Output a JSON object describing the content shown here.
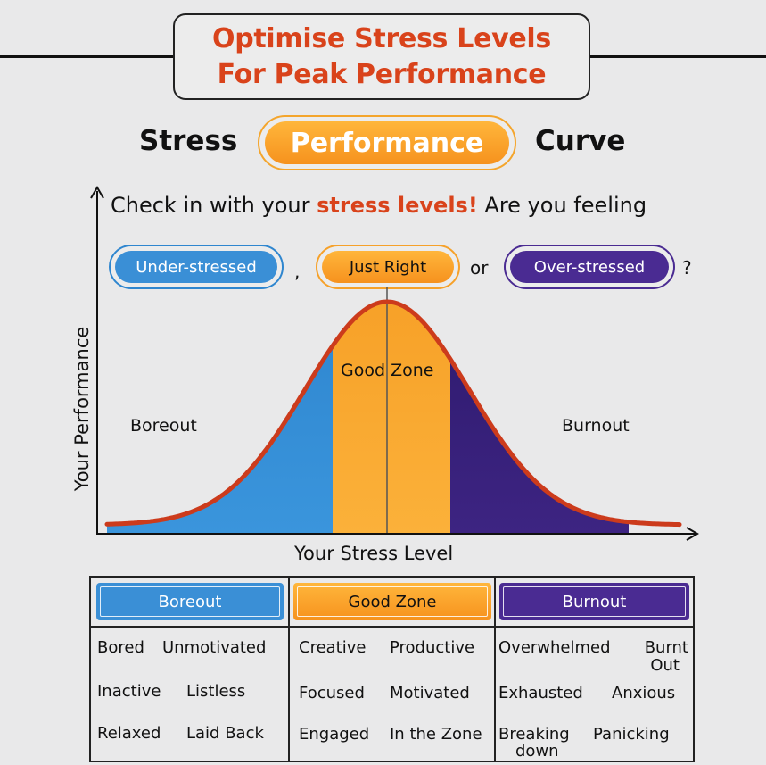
{
  "title": {
    "line1": "Optimise Stress Levels",
    "line2": "For Peak Performance"
  },
  "heading": {
    "left": "Stress",
    "pill": "Performance",
    "right": "Curve"
  },
  "question": {
    "before": "Check in with your ",
    "highlight": "stress levels!",
    "after": " Are you feeling"
  },
  "options": {
    "under": "Under-stressed",
    "sep1": ",",
    "just": "Just Right",
    "sep2": "or",
    "over": "Over-stressed",
    "end": "?"
  },
  "chart": {
    "zones": {
      "left": "Boreout",
      "middle": "Good Zone",
      "right": "Burnout"
    },
    "y_axis": "Your Performance",
    "x_axis": "Your Stress Level"
  },
  "colors": {
    "accent_red": "#d9431b",
    "blue": "#2f86cf",
    "orange": "#f6a12a",
    "purple": "#3d2482",
    "curve": "#cc3b1c"
  },
  "table": {
    "headers": {
      "boreout": "Boreout",
      "good": "Good Zone",
      "burnout": "Burnout"
    },
    "boreout": [
      "Bored",
      "Unmotivated",
      "Inactive",
      "Listless",
      "Relaxed",
      "Laid Back"
    ],
    "good": [
      "Creative",
      "Productive",
      "Focused",
      "Motivated",
      "Engaged",
      "In the Zone"
    ],
    "burnout": {
      "r1a": "Overwhelmed",
      "r1b1": "Burnt",
      "r1b2": "Out",
      "r2a": "Exhausted",
      "r2b": "Anxious",
      "r3a1": "Breaking",
      "r3a2": "down",
      "r3b": "Panicking"
    }
  }
}
